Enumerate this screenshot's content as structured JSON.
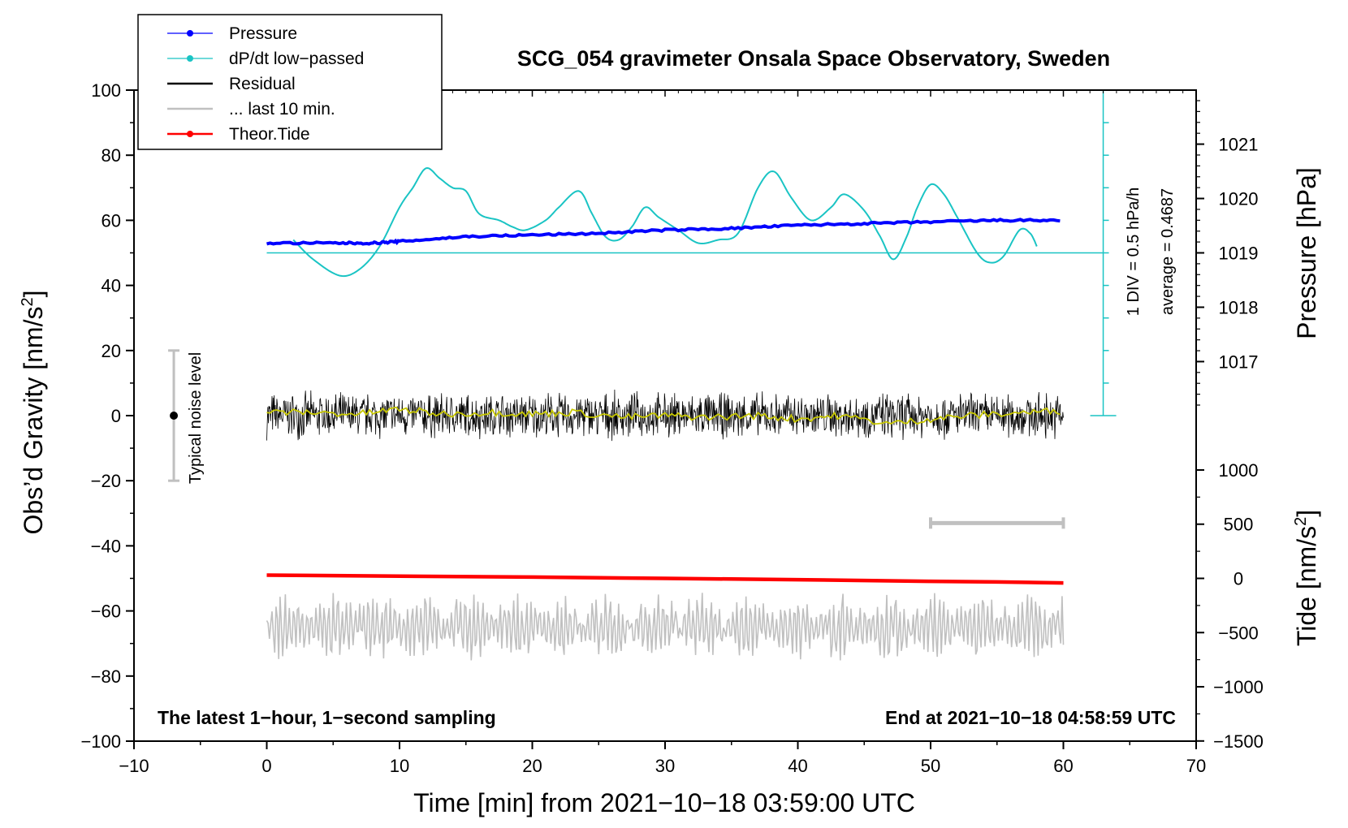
{
  "chart_data": {
    "type": "line",
    "title": "SCG_054 gravimeter Onsala Space Observatory, Sweden",
    "xlabel": "Time [min] from 2021−10−18 03:59:00 UTC",
    "ylabel_left": "Obs’d Gravity [nm/s",
    "ylabel_left_sup": "2",
    "ylabel_left_end": "]",
    "ylabel_right_pressure": "Pressure [hPa]",
    "ylabel_right_tide": "Tide [nm/s",
    "ylabel_right_tide_sup": "2",
    "ylabel_right_tide_end": "]",
    "xlim": [
      -10,
      70
    ],
    "ylim": [
      -100,
      100
    ],
    "x_ticks": [
      -10,
      0,
      10,
      20,
      30,
      40,
      50,
      60,
      70
    ],
    "x_tick_labels": [
      "−10",
      "0",
      "10",
      "20",
      "30",
      "40",
      "50",
      "60",
      "70"
    ],
    "y_ticks": [
      -100,
      -80,
      -60,
      -40,
      -20,
      0,
      20,
      40,
      60,
      80,
      100
    ],
    "y_tick_labels": [
      "−100",
      "−80",
      "−60",
      "−40",
      "−20",
      "0",
      "20",
      "40",
      "60",
      "80",
      "100"
    ],
    "pressure_axis": {
      "ticks": [
        1017,
        1018,
        1019,
        1020,
        1021
      ],
      "tick_labels": [
        "1017",
        "1018",
        "1019",
        "1020",
        "1021"
      ],
      "gravity_equivalent_at_1019": 50,
      "gravity_per_hPa": 16.7
    },
    "tide_axis": {
      "ticks": [
        -1500,
        -1000,
        -500,
        0,
        500,
        1000
      ],
      "tick_labels": [
        "−1500",
        "−1000",
        "−500",
        "0",
        "500",
        "1000"
      ],
      "gravity_at_zero": -50,
      "gravity_per_nm": 0.0333
    },
    "legend": [
      {
        "label": "Pressure",
        "color": "#0000ff",
        "marker": true
      },
      {
        "label": "dP/dt low−passed",
        "color": "#1ac4c4",
        "marker": true
      },
      {
        "label": "Residual",
        "color": "#000000",
        "marker": false
      },
      {
        "label": "... last 10 min.",
        "color": "#c0c0c0",
        "marker": false
      },
      {
        "label": "Theor.Tide",
        "color": "#ff0000",
        "marker": true
      }
    ],
    "annotations": {
      "bottom_left": "The latest 1−hour, 1−second sampling",
      "bottom_right": "End at 2021−10−18 04:58:59 UTC",
      "noise_label": "Typical noise level",
      "div_label": "1 DIV = 0.5 hPa/h",
      "average_label": "average = 0.4687"
    },
    "noise_bar": {
      "x": -7,
      "center": 0,
      "low": -20,
      "high": 20
    },
    "last10_bar": {
      "x_start": 50,
      "x_end": 60,
      "y": -33
    },
    "dpdt_baseline": {
      "y": 50,
      "x_start": 0,
      "x_end": 63
    },
    "div_scale": {
      "x": 63,
      "y_low": 0,
      "y_high": 100,
      "divisions": 10
    },
    "series": [
      {
        "name": "Pressure",
        "color": "#0000ff",
        "x": [
          0,
          5,
          8,
          10,
          15,
          20,
          25,
          30,
          35,
          40,
          45,
          50,
          55,
          60
        ],
        "y": [
          53,
          53,
          53,
          53.5,
          55,
          55.5,
          56,
          57,
          57.5,
          58.5,
          59,
          59.5,
          60,
          60
        ]
      },
      {
        "name": "dP/dt low-passed",
        "color": "#1ac4c4",
        "x": [
          2,
          3.5,
          5.5,
          7,
          8.5,
          10,
          11,
          12,
          13,
          14,
          15,
          16,
          17.5,
          18.5,
          19.5,
          21,
          22,
          23.5,
          24.5,
          25.5,
          26.5,
          27.5,
          28.5,
          29.5,
          31,
          32.5,
          34,
          35.5,
          37,
          38.2,
          39.5,
          41,
          42.5,
          43.5,
          45,
          46.2,
          47.2,
          48.2,
          49,
          50,
          51,
          52,
          53.5,
          54.5,
          55.5,
          56.7,
          57.5,
          58
        ],
        "y": [
          54,
          48,
          43,
          45,
          52,
          64,
          70,
          76,
          73,
          70,
          69,
          62,
          60,
          58,
          57,
          60,
          64,
          69,
          62,
          55,
          54,
          58,
          64,
          61,
          57,
          53,
          54,
          56,
          70,
          75,
          67,
          60,
          64,
          68,
          63,
          55,
          48,
          55,
          64,
          71,
          68,
          61,
          50,
          47,
          49,
          57,
          56,
          52
        ]
      },
      {
        "name": "Residual",
        "color": "#000000",
        "x_range": [
          0,
          60
        ],
        "mean": 0,
        "amplitude": 8
      },
      {
        "name": "Residual smoothed",
        "color": "#c8c800",
        "x": [
          0,
          3,
          7,
          10,
          13,
          17,
          20,
          23,
          27,
          30,
          33,
          37,
          40,
          43,
          47,
          50,
          53,
          57,
          60
        ],
        "y": [
          1,
          1,
          0.5,
          2,
          0.5,
          1,
          0.5,
          1,
          -0.5,
          0,
          -0.5,
          0,
          -1,
          0,
          -2.5,
          -1,
          0,
          1,
          1.5
        ]
      },
      {
        "name": "Theor.Tide",
        "color": "#ff0000",
        "x": [
          0,
          10,
          20,
          30,
          40,
          50,
          55,
          60
        ],
        "y": [
          -49,
          -49.3,
          -49.6,
          -50,
          -50.4,
          -50.9,
          -51.1,
          -51.4
        ]
      },
      {
        "name": "... last 10 min.",
        "color": "#c0c0c0",
        "x_range": [
          0,
          60
        ],
        "mean": -65,
        "amplitude": 9
      }
    ]
  }
}
